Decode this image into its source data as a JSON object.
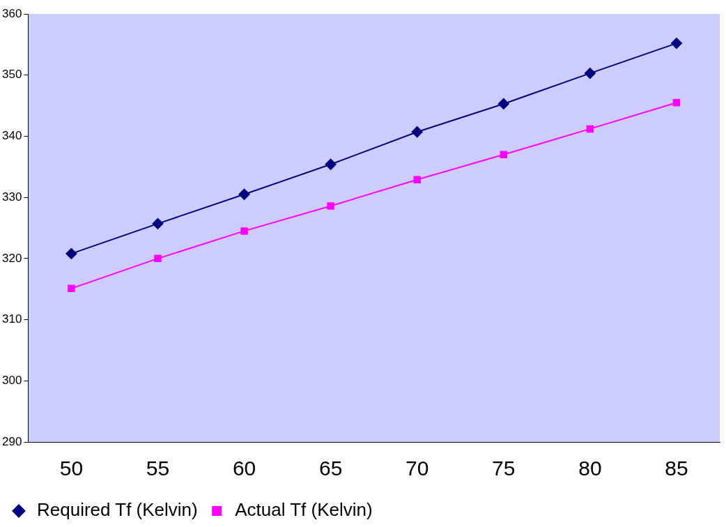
{
  "chart_data": {
    "type": "line",
    "categories": [
      "50",
      "55",
      "60",
      "65",
      "70",
      "75",
      "80",
      "85"
    ],
    "series": [
      {
        "name": "Required Tf (Kelvin)",
        "color": "#000080",
        "marker": "diamond",
        "values": [
          320.8,
          325.7,
          330.5,
          335.4,
          340.7,
          345.3,
          350.3,
          355.2
        ]
      },
      {
        "name": "Actual Tf (Kelvin)",
        "color": "#ff00ff",
        "marker": "square",
        "values": [
          315.1,
          320.0,
          324.5,
          328.6,
          332.9,
          337.0,
          341.2,
          345.5
        ]
      }
    ],
    "ylim": [
      290,
      360
    ],
    "yticks": [
      290,
      300,
      310,
      320,
      330,
      340,
      350,
      360
    ],
    "grid": false,
    "legend": "bottom left",
    "line_style": "solid"
  }
}
